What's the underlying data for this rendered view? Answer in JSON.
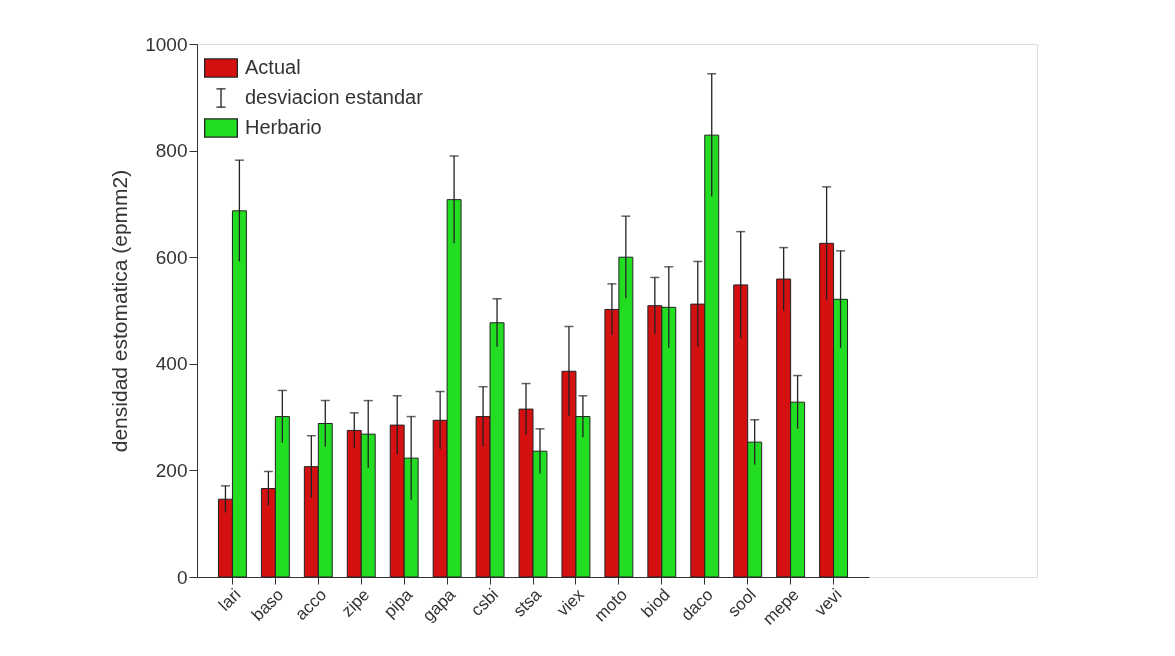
{
  "chart_data": {
    "type": "bar",
    "ylabel": "densidad estomatica (epmm2)",
    "categories": [
      "lari",
      "baso",
      "acco",
      "zipe",
      "pipa",
      "gapa",
      "csbi",
      "stsa",
      "viex",
      "moto",
      "biod",
      "daco",
      "sool",
      "mepe",
      "vevi"
    ],
    "series": [
      {
        "name": "Actual",
        "color": "#d41010",
        "values": [
          146,
          166,
          207,
          275,
          285,
          294,
          301,
          315,
          386,
          502,
          509,
          512,
          548,
          559,
          626
        ],
        "errors": [
          25,
          32,
          58,
          33,
          55,
          54,
          56,
          48,
          84,
          48,
          53,
          80,
          100,
          59,
          106
        ]
      },
      {
        "name": "Herbario",
        "color": "#22dd22",
        "values": [
          687,
          301,
          288,
          268,
          223,
          708,
          477,
          236,
          301,
          600,
          506,
          829,
          253,
          328,
          521
        ],
        "errors": [
          95,
          49,
          43,
          63,
          78,
          82,
          45,
          42,
          39,
          77,
          76,
          115,
          42,
          50,
          91
        ]
      }
    ],
    "annotations": [
      "desviacion estandar"
    ],
    "ylim": [
      0,
      1000
    ],
    "yticks": [
      0,
      200,
      400,
      600,
      800,
      {
        "value": 1000,
        "label": "1000"
      }
    ],
    "grid": false,
    "legend": "top left"
  }
}
